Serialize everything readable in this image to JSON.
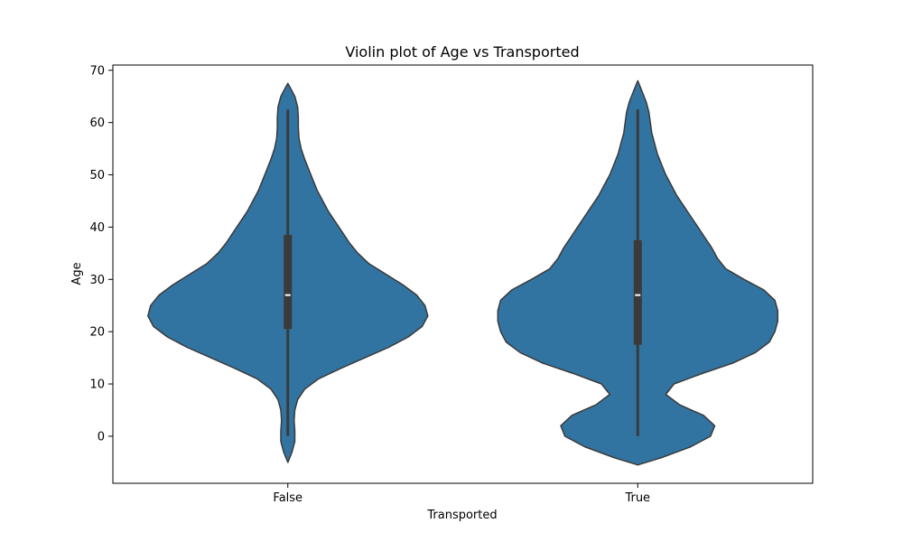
{
  "chart_data": {
    "type": "violin",
    "title": "Violin plot of Age vs Transported",
    "xlabel": "Transported",
    "ylabel": "Age",
    "categories": [
      "False",
      "True"
    ],
    "ylim": [
      -9,
      71
    ],
    "yticks": [
      0,
      10,
      20,
      30,
      40,
      50,
      60,
      70
    ],
    "grid": false,
    "violin_color": "#3274a1",
    "edge_color": "#3a3a3a",
    "box_color": "#3a3a3a",
    "median_color": "#ffffff",
    "series": [
      {
        "category": "False",
        "min": 0,
        "q1": 20.5,
        "median": 27,
        "q3": 38.5,
        "max": 62.5,
        "profile": [
          [
            -5,
            0
          ],
          [
            -3,
            0.03
          ],
          [
            -1,
            0.05
          ],
          [
            1,
            0.05
          ],
          [
            3,
            0.045
          ],
          [
            5,
            0.05
          ],
          [
            7,
            0.07
          ],
          [
            9,
            0.12
          ],
          [
            11,
            0.22
          ],
          [
            13,
            0.38
          ],
          [
            15,
            0.55
          ],
          [
            17,
            0.72
          ],
          [
            19,
            0.86
          ],
          [
            21,
            0.96
          ],
          [
            23,
            1.0
          ],
          [
            25,
            0.98
          ],
          [
            27,
            0.92
          ],
          [
            29,
            0.82
          ],
          [
            31,
            0.7
          ],
          [
            33,
            0.58
          ],
          [
            35,
            0.5
          ],
          [
            37,
            0.44
          ],
          [
            39,
            0.39
          ],
          [
            41,
            0.34
          ],
          [
            43,
            0.29
          ],
          [
            45,
            0.25
          ],
          [
            47,
            0.21
          ],
          [
            49,
            0.18
          ],
          [
            51,
            0.15
          ],
          [
            53,
            0.12
          ],
          [
            55,
            0.095
          ],
          [
            57,
            0.08
          ],
          [
            59,
            0.075
          ],
          [
            61,
            0.075
          ],
          [
            63,
            0.07
          ],
          [
            65,
            0.05
          ],
          [
            66.5,
            0.02
          ],
          [
            67.5,
            0
          ]
        ]
      },
      {
        "category": "True",
        "min": 0,
        "q1": 17.5,
        "median": 27,
        "q3": 37.5,
        "max": 62.5,
        "profile": [
          [
            -5.5,
            0
          ],
          [
            -4,
            0.18
          ],
          [
            -2,
            0.38
          ],
          [
            0,
            0.52
          ],
          [
            2,
            0.55
          ],
          [
            4,
            0.47
          ],
          [
            6,
            0.3
          ],
          [
            8,
            0.2
          ],
          [
            10,
            0.26
          ],
          [
            12,
            0.46
          ],
          [
            14,
            0.68
          ],
          [
            16,
            0.84
          ],
          [
            18,
            0.94
          ],
          [
            20,
            0.98
          ],
          [
            22,
            1.0
          ],
          [
            24,
            1.0
          ],
          [
            26,
            0.98
          ],
          [
            28,
            0.9
          ],
          [
            30,
            0.76
          ],
          [
            32,
            0.63
          ],
          [
            34,
            0.57
          ],
          [
            36,
            0.53
          ],
          [
            38,
            0.48
          ],
          [
            40,
            0.43
          ],
          [
            42,
            0.38
          ],
          [
            44,
            0.33
          ],
          [
            46,
            0.28
          ],
          [
            48,
            0.24
          ],
          [
            50,
            0.2
          ],
          [
            52,
            0.17
          ],
          [
            54,
            0.14
          ],
          [
            56,
            0.12
          ],
          [
            58,
            0.1
          ],
          [
            60,
            0.09
          ],
          [
            62,
            0.08
          ],
          [
            64,
            0.06
          ],
          [
            66,
            0.03
          ],
          [
            67,
            0.015
          ],
          [
            68,
            0
          ]
        ]
      }
    ]
  }
}
